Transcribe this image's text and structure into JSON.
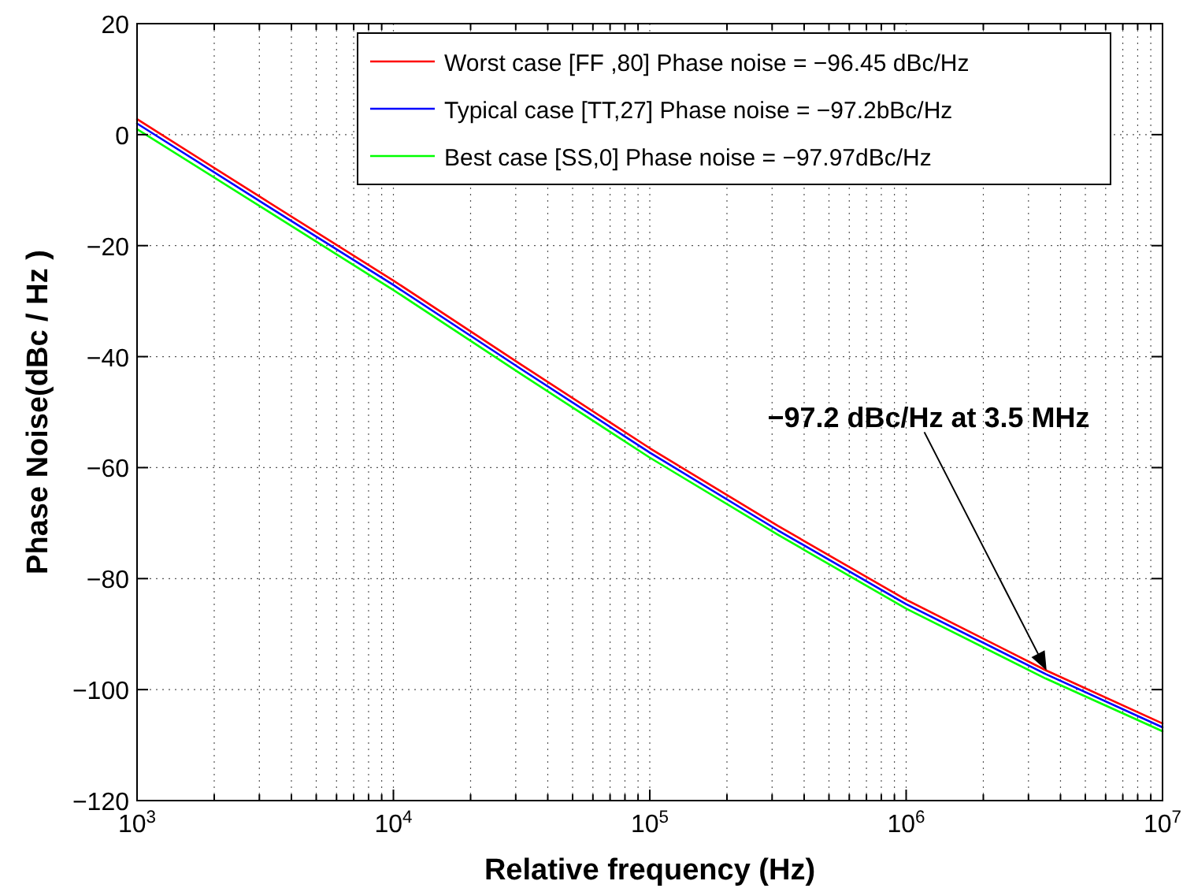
{
  "chart_data": {
    "type": "line",
    "xlabel": "Relative frequency (Hz)",
    "ylabel": "Phase Noise(dBc / Hz )",
    "log": "x",
    "xlim": [
      1000,
      10000000
    ],
    "ylim": [
      -120,
      20
    ],
    "xticks": [
      {
        "value": 1000,
        "label": "10$^{3}$"
      },
      {
        "value": 10000,
        "label": "10$^{4}$"
      },
      {
        "value": 100000,
        "label": "10$^{5}$"
      },
      {
        "value": 1000000,
        "label": "10$^{6}$"
      },
      {
        "value": 10000000,
        "label": "10$^{7}$"
      }
    ],
    "yticks": [
      -120,
      -100,
      -80,
      -60,
      -40,
      -20,
      0,
      20
    ],
    "x": [
      1000,
      3162,
      10000,
      31623,
      100000,
      316228,
      1000000,
      3500000,
      10000000
    ],
    "series": [
      {
        "name": "Worst case [FF ,80] Phase noise = −96.45 dBc/Hz",
        "color": "#ff0000",
        "values": [
          2.8,
          -11.8,
          -26.3,
          -41.5,
          -56.5,
          -70.5,
          -83.8,
          -96.5,
          -106.1
        ]
      },
      {
        "name": "Typical case [TT,27] Phase noise = −97.2bBc/Hz",
        "color": "#0000ff",
        "values": [
          2.0,
          -12.6,
          -27.1,
          -42.3,
          -57.3,
          -71.3,
          -84.6,
          -97.2,
          -106.8
        ]
      },
      {
        "name": "Best case [SS,0] Phase noise = −97.97dBc/Hz",
        "color": "#00ff00",
        "values": [
          1.0,
          -13.5,
          -28.0,
          -43.2,
          -58.2,
          -72.1,
          -85.4,
          -98.0,
          -107.5
        ]
      }
    ],
    "annotations": [
      "−97.2 dBc/Hz at 3.5 MHz"
    ],
    "grid": true,
    "legend": "top right",
    "line_style": "solid",
    "marker": "none"
  }
}
